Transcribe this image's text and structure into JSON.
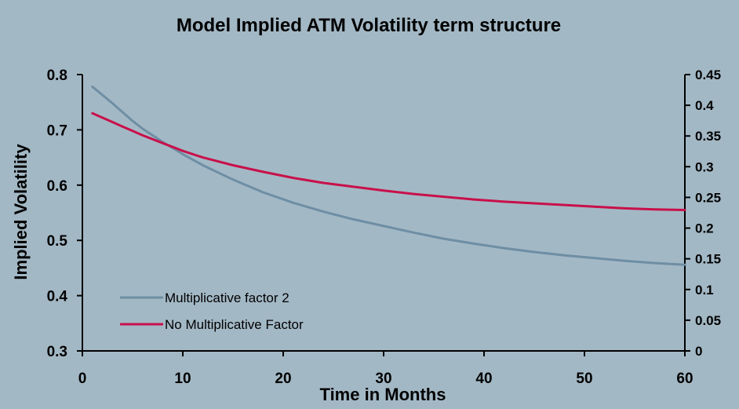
{
  "chart_data": {
    "type": "line",
    "title": "Model Implied ATM Volatility term structure",
    "xlabel": "Time in Months",
    "ylabel": "Implied Volatility",
    "xlim": [
      0,
      60
    ],
    "ylim": [
      0.3,
      0.8
    ],
    "y2lim": [
      0,
      0.45
    ],
    "x_ticks": [
      "0",
      "10",
      "20",
      "30",
      "40",
      "50",
      "60"
    ],
    "y_ticks": [
      "0.3",
      "0.4",
      "0.5",
      "0.6",
      "0.7",
      "0.8"
    ],
    "y2_ticks": [
      "0",
      "0.05",
      "0.1",
      "0.15",
      "0.2",
      "0.25",
      "0.3",
      "0.35",
      "0.4",
      "0.45"
    ],
    "legend_position": "bottom-left",
    "grid": false,
    "series": [
      {
        "name": "Multiplicative factor 2",
        "color": "#6e8ea4",
        "axis": "left",
        "x": [
          1,
          2,
          3,
          4,
          5,
          6,
          8,
          10,
          12,
          15,
          18,
          21,
          24,
          27,
          30,
          33,
          36,
          39,
          42,
          45,
          48,
          51,
          54,
          57,
          60
        ],
        "values": [
          0.778,
          0.763,
          0.748,
          0.732,
          0.716,
          0.702,
          0.678,
          0.656,
          0.636,
          0.61,
          0.587,
          0.568,
          0.552,
          0.538,
          0.526,
          0.514,
          0.503,
          0.494,
          0.486,
          0.479,
          0.473,
          0.468,
          0.463,
          0.459,
          0.456
        ]
      },
      {
        "name": "No Multiplicative Factor",
        "color": "#c8104a",
        "axis": "left",
        "x": [
          1,
          2,
          3,
          4,
          5,
          6,
          8,
          10,
          12,
          15,
          18,
          21,
          24,
          27,
          30,
          33,
          36,
          39,
          42,
          45,
          48,
          51,
          54,
          57,
          60
        ],
        "values": [
          0.73,
          0.722,
          0.714,
          0.706,
          0.698,
          0.69,
          0.676,
          0.662,
          0.65,
          0.636,
          0.624,
          0.613,
          0.604,
          0.597,
          0.59,
          0.584,
          0.579,
          0.574,
          0.57,
          0.567,
          0.564,
          0.561,
          0.558,
          0.556,
          0.555
        ]
      }
    ]
  }
}
